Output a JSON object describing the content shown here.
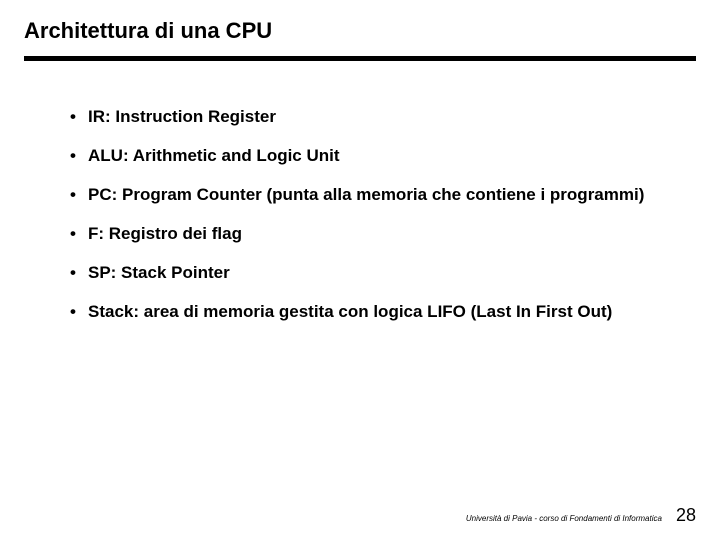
{
  "title": {
    "text": "Architettura di una CPU",
    "fontsize": 22
  },
  "rule": {
    "color": "#000000",
    "thickness": 5
  },
  "bullets": {
    "fontsize": 17,
    "line_height": 2.3,
    "items": [
      "IR: Instruction Register",
      "ALU: Arithmetic and Logic Unit",
      "PC: Program Counter (punta alla memoria che contiene i programmi)",
      "F: Registro dei flag",
      "SP: Stack Pointer",
      "Stack: area di memoria gestita con logica LIFO (Last In First Out)"
    ]
  },
  "footer": {
    "note": "Università di Pavia  - corso di Fondamenti di Informatica",
    "note_fontsize": 8,
    "page_number": "28",
    "page_fontsize": 18
  },
  "colors": {
    "background": "#ffffff",
    "text": "#000000"
  }
}
